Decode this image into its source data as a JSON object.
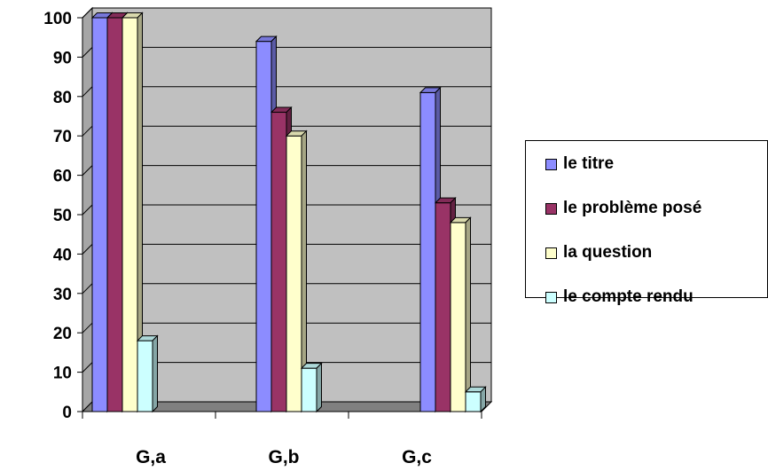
{
  "chart_data": {
    "type": "bar",
    "categories": [
      "G,a",
      "G,b",
      "G,c"
    ],
    "series": [
      {
        "name": "le titre",
        "values": [
          100,
          94,
          81
        ],
        "color": "#8c8cff"
      },
      {
        "name": "le problème posé",
        "values": [
          100,
          76,
          53
        ],
        "color": "#993366"
      },
      {
        "name": "la question",
        "values": [
          100,
          70,
          48
        ],
        "color": "#ffffcc"
      },
      {
        "name": "le compte rendu",
        "values": [
          18,
          11,
          5
        ],
        "color": "#ccffff"
      }
    ],
    "yticks": [
      "0",
      "10",
      "20",
      "30",
      "40",
      "50",
      "60",
      "70",
      "80",
      "90",
      "100"
    ],
    "ylim": [
      0,
      100
    ],
    "grid": true,
    "plot_background": "#c0c0c0",
    "legend_position": "right",
    "style": "3d-clustered-column"
  }
}
